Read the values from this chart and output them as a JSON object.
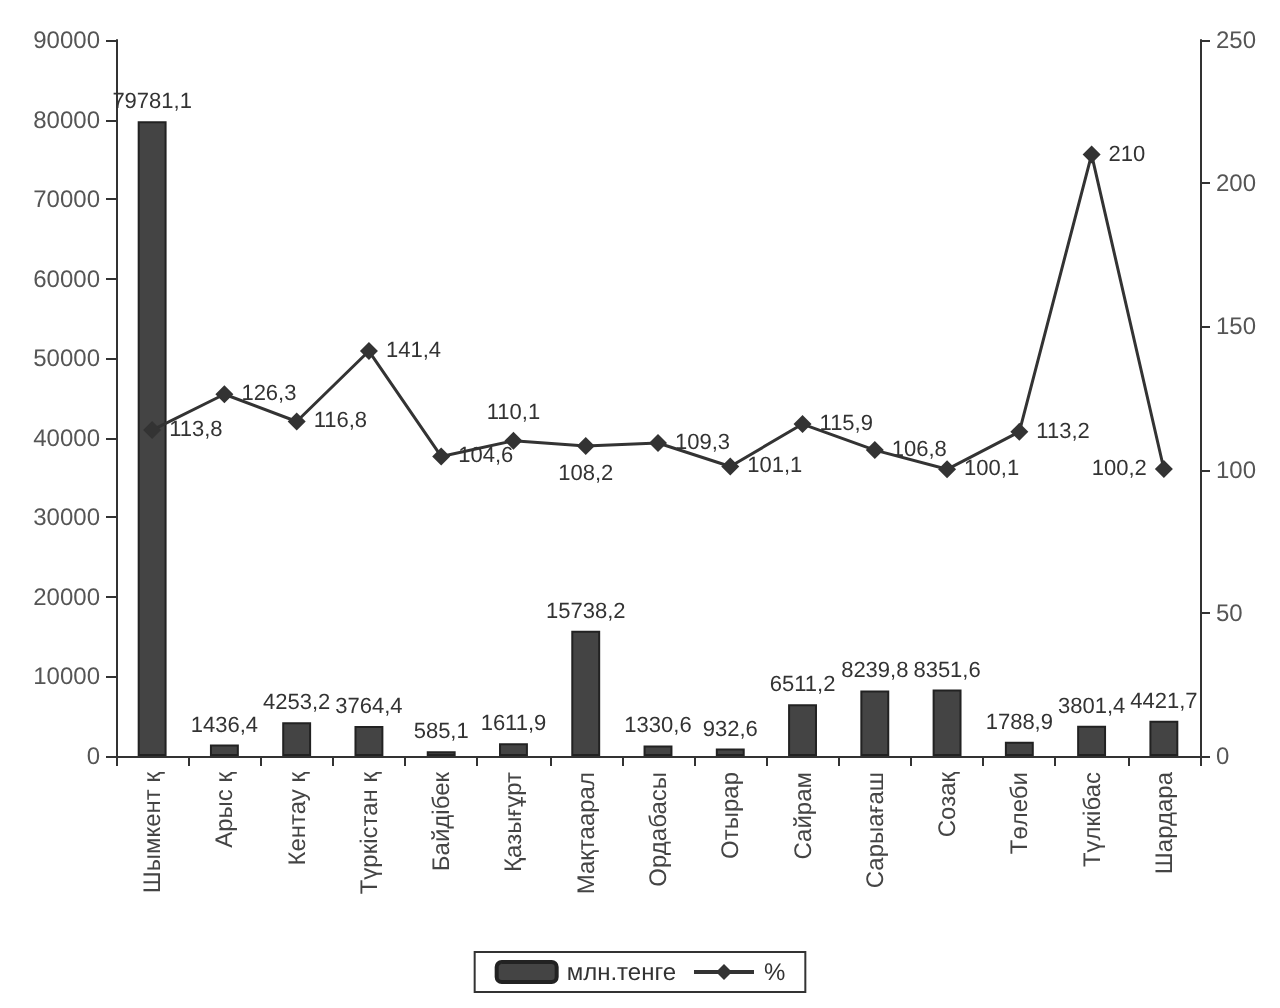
{
  "chart_data": {
    "type": "bar",
    "categories": [
      "Шымкент қ",
      "Арыс қ",
      "Кентау қ",
      "Түркістан қ",
      "Байдібек",
      "Қазығұрт",
      "Мақтаарал",
      "Ордабасы",
      "Отырар",
      "Сайрам",
      "Сарыағаш",
      "Созақ",
      "Төлеби",
      "Түлкібас",
      "Шардара"
    ],
    "series": [
      {
        "name": "млн.тенге",
        "color": "#444444",
        "values": [
          79781.1,
          1436.4,
          4253.2,
          3764.4,
          585.1,
          1611.9,
          15738.2,
          1330.6,
          932.6,
          6511.2,
          8239.8,
          8351.6,
          1788.9,
          3801.4,
          4421.7
        ],
        "value_labels": [
          "79781,1",
          "1436,4",
          "4253,2",
          "3764,4",
          "585,1",
          "1611,9",
          "15738,2",
          "1330,6",
          "932,6",
          "6511,2",
          "8239,8",
          "8351,6",
          "1788,9",
          "3801,4",
          "4421,7"
        ]
      },
      {
        "name": "%",
        "type": "line",
        "axis": "y2",
        "color": "#333333",
        "marker": "diamond",
        "values": [
          113.8,
          126.3,
          116.8,
          141.4,
          104.6,
          110.1,
          108.2,
          109.3,
          101.1,
          115.9,
          106.8,
          100.1,
          113.2,
          210,
          100.2
        ],
        "value_labels": [
          "113,8",
          "126,3",
          "116,8",
          "141,4",
          "104,6",
          "110,1",
          "108,2",
          "109,3",
          "101,1",
          "115,9",
          "106,8",
          "100,1",
          "113,2",
          "210",
          "100,2"
        ]
      }
    ],
    "ylim": [
      0,
      90000
    ],
    "yticks": [
      0,
      10000,
      20000,
      30000,
      40000,
      50000,
      60000,
      70000,
      80000,
      90000
    ],
    "y2lim": [
      0,
      250
    ],
    "y2ticks": [
      0,
      50,
      100,
      150,
      200,
      250
    ],
    "legend": "bottom"
  }
}
